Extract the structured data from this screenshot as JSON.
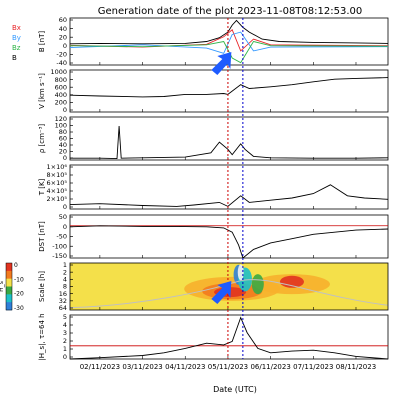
{
  "chart_data": {
    "type": "line",
    "title": "Generation date of the plot 2023-11-08T08:12:53.00",
    "xlabel": "Date (UTC)",
    "x_tick_labels": [
      "02/11/2023",
      "03/11/2023",
      "04/11/2023",
      "05/11/2023",
      "06/11/2023",
      "07/11/2023",
      "08/11/2023"
    ],
    "xlim_days": [
      1.3,
      8.75
    ],
    "markers": [
      {
        "label": "red-dashed",
        "day": 5.0,
        "color": "#cc0000"
      },
      {
        "label": "blue-dashed",
        "day": 5.35,
        "color": "#0000cc"
      }
    ],
    "panels": [
      {
        "id": "b_field",
        "ylabel": "B [nT]",
        "ylim": [
          -40,
          60
        ],
        "yticks": [
          "60",
          "40",
          "20",
          "0",
          "-20",
          "-40"
        ],
        "legend": [
          {
            "label": "Bx",
            "color": "#e8262a"
          },
          {
            "label": "By",
            "color": "#3399ff"
          },
          {
            "label": "Bz",
            "color": "#2fb44a"
          },
          {
            "label": "B",
            "color": "#000000"
          }
        ],
        "series": [
          {
            "name": "B",
            "color": "#000000",
            "points": [
              [
                1.3,
                5
              ],
              [
                2,
                6
              ],
              [
                3,
                5
              ],
              [
                4,
                6
              ],
              [
                4.5,
                10
              ],
              [
                4.8,
                18
              ],
              [
                5.0,
                30
              ],
              [
                5.1,
                45
              ],
              [
                5.2,
                55
              ],
              [
                5.35,
                40
              ],
              [
                5.5,
                30
              ],
              [
                5.8,
                15
              ],
              [
                6.2,
                10
              ],
              [
                7,
                8
              ],
              [
                8,
                7
              ],
              [
                8.75,
                6
              ]
            ]
          },
          {
            "name": "Bx",
            "color": "#e8262a",
            "points": [
              [
                1.3,
                2
              ],
              [
                3,
                -2
              ],
              [
                4.5,
                4
              ],
              [
                4.9,
                20
              ],
              [
                5.1,
                35
              ],
              [
                5.3,
                -10
              ],
              [
                5.6,
                15
              ],
              [
                6,
                3
              ],
              [
                8.75,
                1
              ]
            ]
          },
          {
            "name": "By",
            "color": "#3399ff",
            "points": [
              [
                1.3,
                -3
              ],
              [
                3,
                3
              ],
              [
                4.5,
                -4
              ],
              [
                4.9,
                -15
              ],
              [
                5.1,
                25
              ],
              [
                5.3,
                30
              ],
              [
                5.6,
                -10
              ],
              [
                6,
                -2
              ],
              [
                8.75,
                -1
              ]
            ]
          },
          {
            "name": "Bz",
            "color": "#2fb44a",
            "points": [
              [
                1.3,
                1
              ],
              [
                3,
                -1
              ],
              [
                4.5,
                3
              ],
              [
                4.9,
                10
              ],
              [
                5.1,
                -25
              ],
              [
                5.3,
                -35
              ],
              [
                5.6,
                10
              ],
              [
                6,
                1
              ],
              [
                8.75,
                0
              ]
            ]
          }
        ]
      },
      {
        "id": "speed",
        "ylabel": "V [km s⁻¹]",
        "ylim": [
          0,
          1000
        ],
        "yticks": [
          "1000",
          "800",
          "600",
          "400",
          "200",
          "0"
        ],
        "series": [
          {
            "name": "V",
            "color": "#000000",
            "points": [
              [
                1.3,
                400
              ],
              [
                2,
                380
              ],
              [
                3,
                360
              ],
              [
                3.5,
                370
              ],
              [
                4,
                420
              ],
              [
                4.5,
                420
              ],
              [
                4.9,
                440
              ],
              [
                5.0,
                420
              ],
              [
                5.3,
                650
              ],
              [
                5.5,
                560
              ],
              [
                6,
                600
              ],
              [
                6.5,
                650
              ],
              [
                7,
                720
              ],
              [
                7.5,
                780
              ],
              [
                8,
                800
              ],
              [
                8.75,
                820
              ]
            ]
          }
        ]
      },
      {
        "id": "density",
        "ylabel": "ρ [cm⁻³]",
        "ylim": [
          0,
          120
        ],
        "yticks": [
          "120",
          "100",
          "80",
          "60",
          "40",
          "20",
          "0"
        ],
        "series": [
          {
            "name": "rho",
            "color": "#000000",
            "points": [
              [
                1.3,
                5
              ],
              [
                2,
                5
              ],
              [
                2.4,
                4
              ],
              [
                2.45,
                95
              ],
              [
                2.5,
                5
              ],
              [
                3,
                6
              ],
              [
                4,
                8
              ],
              [
                4.6,
                20
              ],
              [
                4.8,
                50
              ],
              [
                5.0,
                30
              ],
              [
                5.1,
                15
              ],
              [
                5.3,
                45
              ],
              [
                5.4,
                30
              ],
              [
                5.6,
                10
              ],
              [
                6,
                6
              ],
              [
                7,
                5
              ],
              [
                8,
                5
              ],
              [
                8.75,
                6
              ]
            ]
          }
        ]
      },
      {
        "id": "temperature",
        "ylabel": "T [K]",
        "ylim": [
          0,
          1000000
        ],
        "yticks": [
          "1×10⁶",
          "8×10⁵",
          "6×10⁵",
          "4×10⁵",
          "2×10⁵",
          "0"
        ],
        "series": [
          {
            "name": "T",
            "color": "#000000",
            "points": [
              [
                1.3,
                100000
              ],
              [
                2,
                120000
              ],
              [
                3,
                80000
              ],
              [
                3.8,
                60000
              ],
              [
                4.2,
                90000
              ],
              [
                4.8,
                150000
              ],
              [
                5.0,
                60000
              ],
              [
                5.3,
                300000
              ],
              [
                5.5,
                150000
              ],
              [
                6,
                200000
              ],
              [
                6.5,
                250000
              ],
              [
                7,
                350000
              ],
              [
                7.4,
                550000
              ],
              [
                7.8,
                300000
              ],
              [
                8.2,
                250000
              ],
              [
                8.75,
                220000
              ]
            ]
          }
        ]
      },
      {
        "id": "dst",
        "ylabel": "DST [nT]",
        "ylim": [
          -150,
          50
        ],
        "yticks": [
          "50",
          "0",
          "-50",
          "-100",
          "-150"
        ],
        "reference_line": {
          "y": 0,
          "color": "#cc0000"
        },
        "series": [
          {
            "name": "DST",
            "color": "#000000",
            "points": [
              [
                1.3,
                -5
              ],
              [
                2,
                0
              ],
              [
                3,
                -3
              ],
              [
                4,
                -4
              ],
              [
                4.5,
                -5
              ],
              [
                4.9,
                -10
              ],
              [
                5.1,
                -30
              ],
              [
                5.25,
                -90
              ],
              [
                5.35,
                -150
              ],
              [
                5.6,
                -110
              ],
              [
                6,
                -80
              ],
              [
                6.5,
                -60
              ],
              [
                7,
                -40
              ],
              [
                7.5,
                -30
              ],
              [
                8,
                -20
              ],
              [
                8.75,
                -15
              ]
            ]
          }
        ]
      },
      {
        "id": "scale",
        "ylabel": "Scale [h]",
        "yticks": [
          "1",
          "2",
          "4",
          "8",
          "16",
          "32",
          "64"
        ],
        "colorbar_label": "H_s",
        "colorbar_ticks": [
          "0",
          "-10",
          "-20",
          "-30"
        ]
      },
      {
        "id": "hsq",
        "ylabel": "|H_s|, τ=64 h",
        "ylim": [
          0,
          5
        ],
        "yticks": [
          "5",
          "4",
          "3",
          "2",
          "1",
          "0"
        ],
        "reference_line": {
          "y": 1.5,
          "color": "#cc0000"
        },
        "series": [
          {
            "name": "Hs",
            "color": "#000000",
            "points": [
              [
                1.3,
                0.0
              ],
              [
                2,
                0.15
              ],
              [
                3,
                0.4
              ],
              [
                3.5,
                0.7
              ],
              [
                4,
                1.2
              ],
              [
                4.5,
                1.8
              ],
              [
                4.9,
                1.6
              ],
              [
                5.1,
                2.0
              ],
              [
                5.3,
                4.7
              ],
              [
                5.45,
                3.0
              ],
              [
                5.7,
                1.2
              ],
              [
                6,
                0.7
              ],
              [
                6.5,
                0.9
              ],
              [
                7,
                1.0
              ],
              [
                7.5,
                0.7
              ],
              [
                8,
                0.3
              ],
              [
                8.75,
                0.0
              ]
            ]
          }
        ]
      }
    ]
  }
}
